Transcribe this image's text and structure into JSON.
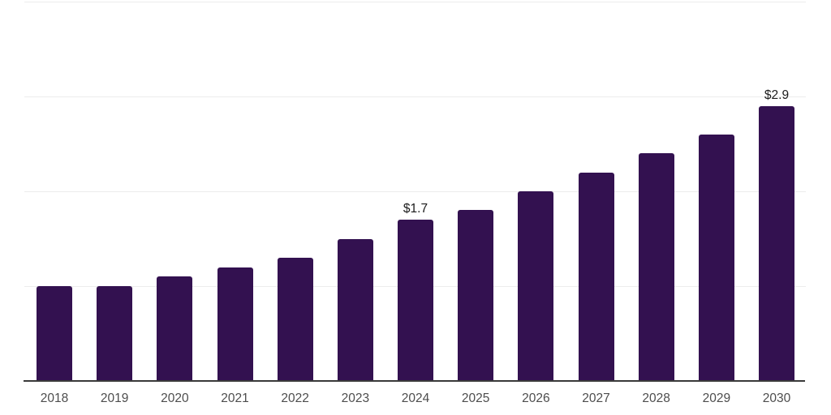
{
  "chart_data": {
    "type": "bar",
    "title": "",
    "xlabel": "",
    "ylabel": "",
    "categories": [
      "2018",
      "2019",
      "2020",
      "2021",
      "2022",
      "2023",
      "2024",
      "2025",
      "2026",
      "2027",
      "2028",
      "2029",
      "2030"
    ],
    "values": [
      1.0,
      1.0,
      1.1,
      1.2,
      1.3,
      1.5,
      1.7,
      1.8,
      2.0,
      2.2,
      2.4,
      2.6,
      2.9
    ],
    "data_labels": [
      "",
      "",
      "",
      "",
      "",
      "",
      "$1.7",
      "",
      "",
      "",
      "",
      "",
      "$2.9"
    ],
    "ylim": [
      0,
      4
    ],
    "gridline_values": [
      1,
      2,
      3,
      4
    ],
    "grid": "horizontal",
    "legend": "none",
    "colors": {
      "bar": "#331150",
      "gridline": "#ececec",
      "axis_line": "#3a3a3a",
      "tick_label": "#4d4d4d",
      "data_label": "#1c1c1c",
      "background": "#ffffff"
    }
  }
}
